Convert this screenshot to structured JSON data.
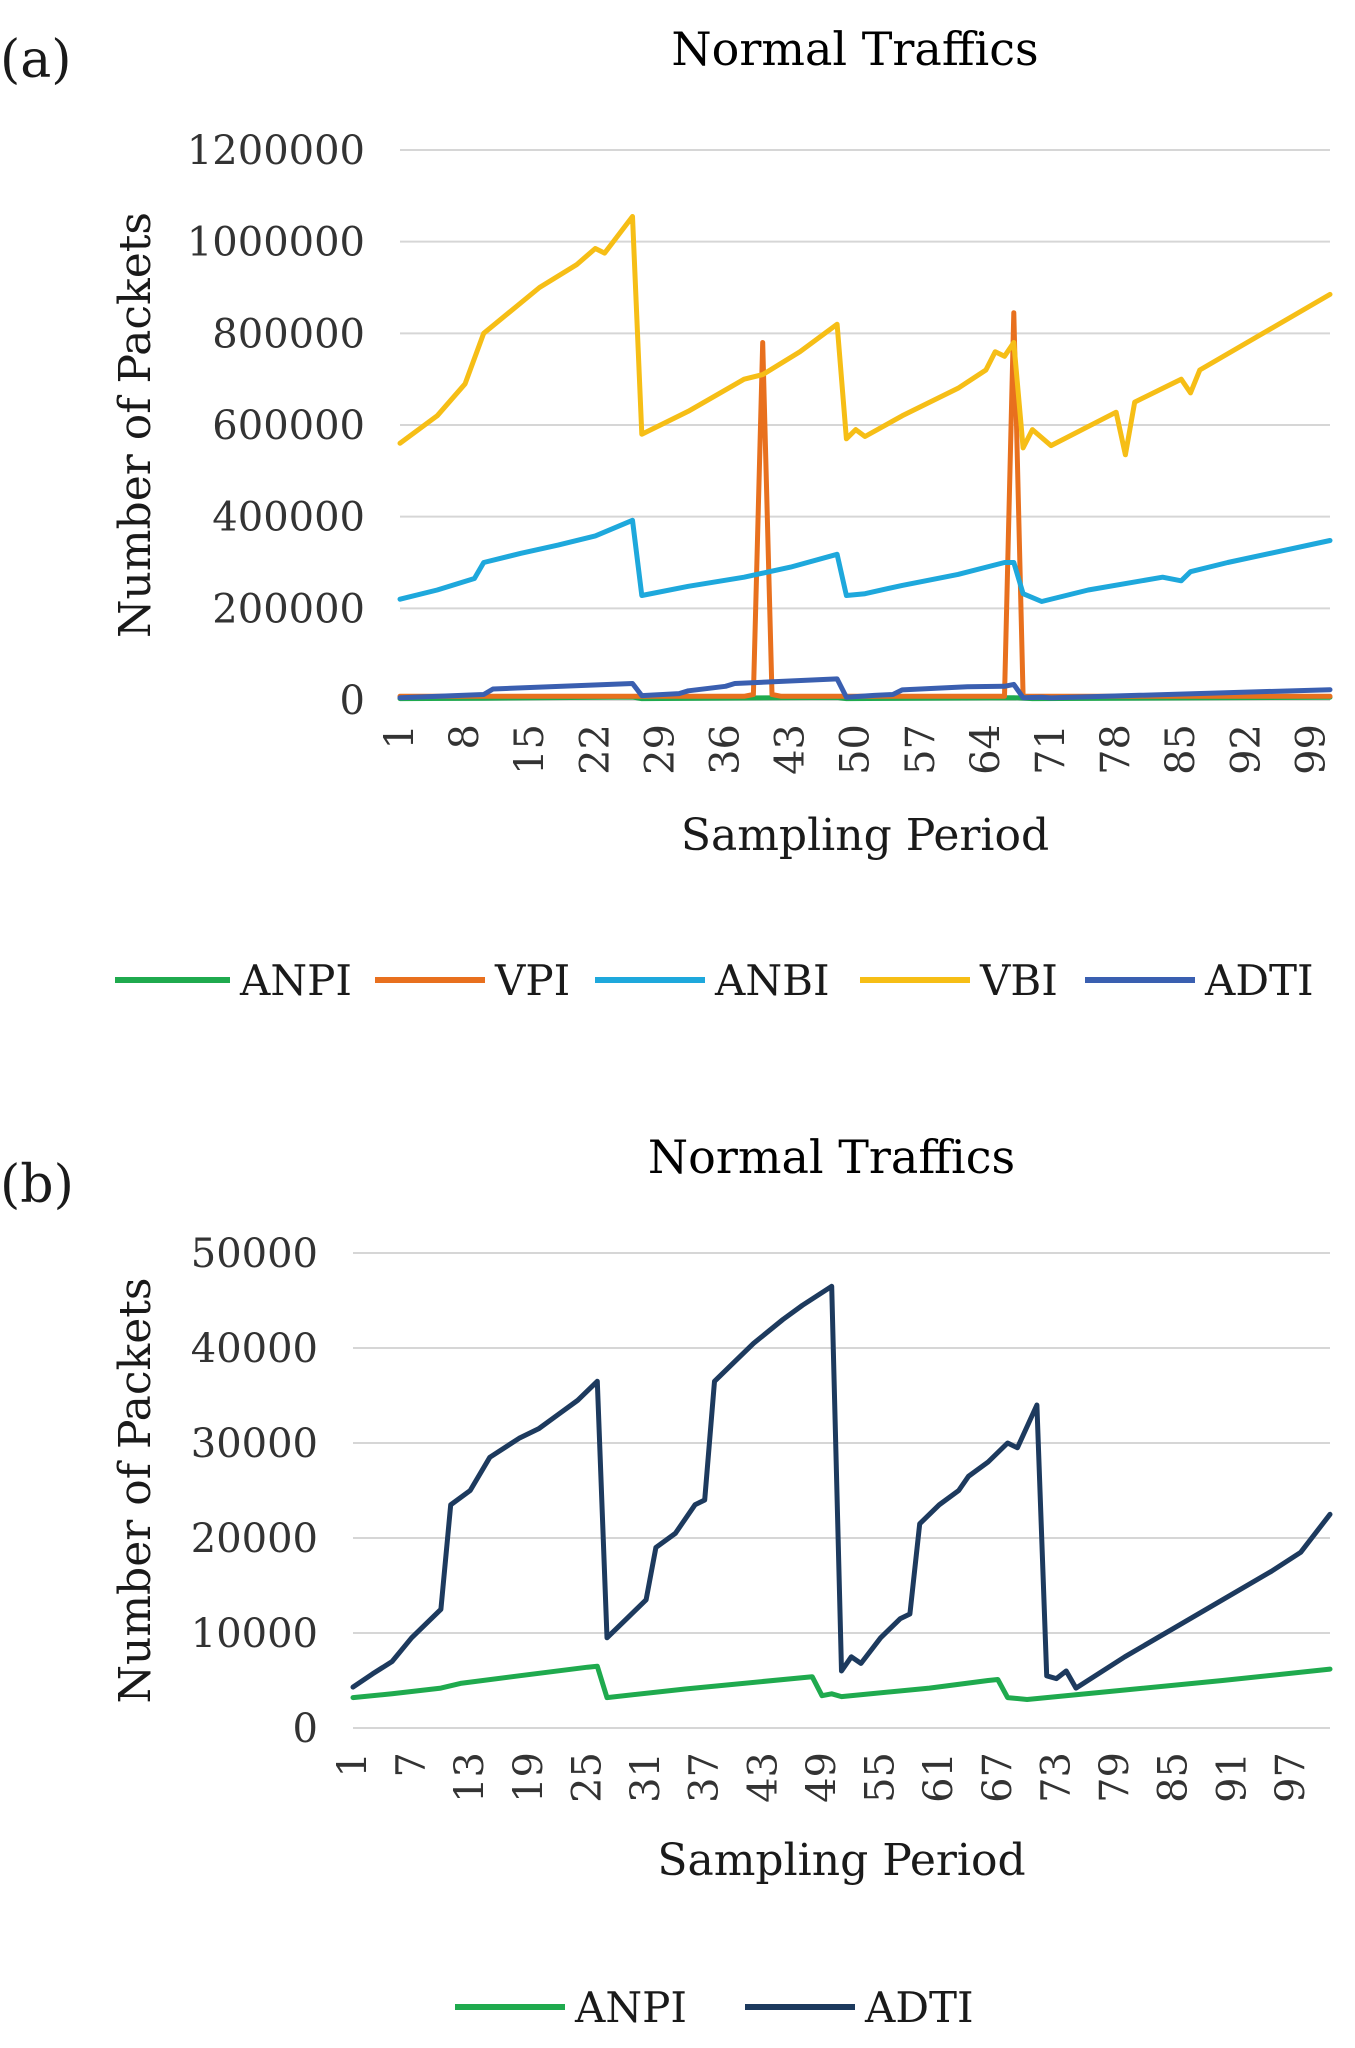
{
  "chart_data": [
    {
      "panel": "(a)",
      "type": "line",
      "title": "Normal Traffics",
      "xlabel": "Sampling Period",
      "ylabel": "Number of Packets",
      "ylim": [
        0,
        1200000
      ],
      "yticks": [
        "0",
        "200000",
        "400000",
        "600000",
        "800000",
        "1000000",
        "1200000"
      ],
      "xticks": [
        "1",
        "8",
        "15",
        "22",
        "29",
        "36",
        "43",
        "50",
        "57",
        "64",
        "71",
        "78",
        "85",
        "92",
        "99"
      ],
      "xrange": [
        1,
        101
      ],
      "grid": true,
      "legend_position": "bottom",
      "series": [
        {
          "name": "ANPI",
          "color": "#1faa4e",
          "points": [
            [
              1,
              3000
            ],
            [
              10,
              4000
            ],
            [
              26,
              6500
            ],
            [
              27,
              3000
            ],
            [
              48,
              5500
            ],
            [
              49,
              3000
            ],
            [
              67,
              5000
            ],
            [
              69,
              3000
            ],
            [
              101,
              6000
            ]
          ]
        },
        {
          "name": "VPI",
          "color": "#e8701e",
          "points": [
            [
              1,
              8000
            ],
            [
              38,
              8000
            ],
            [
              39,
              12000
            ],
            [
              40,
              780000
            ],
            [
              41,
              12000
            ],
            [
              42,
              8000
            ],
            [
              66,
              8000
            ],
            [
              67,
              845000
            ],
            [
              68,
              8000
            ],
            [
              101,
              8000
            ]
          ]
        },
        {
          "name": "ANBI",
          "color": "#1ea8dc",
          "points": [
            [
              1,
              220000
            ],
            [
              5,
              240000
            ],
            [
              9,
              265000
            ],
            [
              10,
              300000
            ],
            [
              14,
              320000
            ],
            [
              18,
              338000
            ],
            [
              22,
              358000
            ],
            [
              26,
              392000
            ],
            [
              27,
              228000
            ],
            [
              32,
              248000
            ],
            [
              38,
              268000
            ],
            [
              43,
              290000
            ],
            [
              48,
              318000
            ],
            [
              49,
              228000
            ],
            [
              51,
              232000
            ],
            [
              55,
              250000
            ],
            [
              61,
              274000
            ],
            [
              66,
              300000
            ],
            [
              67,
              300000
            ],
            [
              68,
              232000
            ],
            [
              70,
              215000
            ],
            [
              75,
              240000
            ],
            [
              83,
              268000
            ],
            [
              85,
              260000
            ],
            [
              86,
              280000
            ],
            [
              90,
              300000
            ],
            [
              101,
              348000
            ]
          ]
        },
        {
          "name": "VBI",
          "color": "#f6be16",
          "points": [
            [
              1,
              560000
            ],
            [
              5,
              620000
            ],
            [
              8,
              690000
            ],
            [
              10,
              800000
            ],
            [
              13,
              850000
            ],
            [
              16,
              900000
            ],
            [
              20,
              950000
            ],
            [
              22,
              985000
            ],
            [
              23,
              975000
            ],
            [
              26,
              1055000
            ],
            [
              27,
              580000
            ],
            [
              32,
              630000
            ],
            [
              38,
              700000
            ],
            [
              40,
              710000
            ],
            [
              44,
              760000
            ],
            [
              48,
              820000
            ],
            [
              49,
              570000
            ],
            [
              50,
              590000
            ],
            [
              51,
              575000
            ],
            [
              55,
              620000
            ],
            [
              61,
              680000
            ],
            [
              64,
              720000
            ],
            [
              65,
              760000
            ],
            [
              66,
              750000
            ],
            [
              67,
              780000
            ],
            [
              68,
              550000
            ],
            [
              69,
              590000
            ],
            [
              71,
              555000
            ],
            [
              78,
              628000
            ],
            [
              79,
              535000
            ],
            [
              80,
              650000
            ],
            [
              85,
              700000
            ],
            [
              86,
              670000
            ],
            [
              87,
              720000
            ],
            [
              101,
              885000
            ]
          ]
        },
        {
          "name": "ADTI",
          "color": "#3a5fb0",
          "points": [
            [
              1,
              5000
            ],
            [
              10,
              12000
            ],
            [
              11,
              24000
            ],
            [
              26,
              36000
            ],
            [
              27,
              9500
            ],
            [
              31,
              14000
            ],
            [
              32,
              20000
            ],
            [
              36,
              30000
            ],
            [
              37,
              36000
            ],
            [
              48,
              46000
            ],
            [
              49,
              6000
            ],
            [
              52,
              10000
            ],
            [
              54,
              12000
            ],
            [
              55,
              22000
            ],
            [
              62,
              29000
            ],
            [
              66,
              30000
            ],
            [
              67,
              34000
            ],
            [
              68,
              5000
            ],
            [
              70,
              6000
            ],
            [
              71,
              4500
            ],
            [
              101,
              22500
            ]
          ]
        }
      ]
    },
    {
      "panel": "(b)",
      "type": "line",
      "title": "Normal Traffics",
      "xlabel": "Sampling Period",
      "ylabel": "Number of Packets",
      "ylim": [
        0,
        50000
      ],
      "yticks": [
        "0",
        "10000",
        "20000",
        "30000",
        "40000",
        "50000"
      ],
      "xticks": [
        "1",
        "7",
        "13",
        "19",
        "25",
        "31",
        "37",
        "43",
        "49",
        "55",
        "61",
        "67",
        "73",
        "79",
        "85",
        "91",
        "97"
      ],
      "xrange": [
        1,
        101
      ],
      "grid": true,
      "legend_position": "bottom",
      "series": [
        {
          "name": "ANPI",
          "color": "#1faa4e",
          "points": [
            [
              1,
              3200
            ],
            [
              5,
              3600
            ],
            [
              10,
              4200
            ],
            [
              12,
              4700
            ],
            [
              18,
              5500
            ],
            [
              25,
              6400
            ],
            [
              26,
              6500
            ],
            [
              27,
              3200
            ],
            [
              35,
              4100
            ],
            [
              48,
              5400
            ],
            [
              49,
              3400
            ],
            [
              50,
              3600
            ],
            [
              51,
              3300
            ],
            [
              60,
              4200
            ],
            [
              66,
              5000
            ],
            [
              67,
              5100
            ],
            [
              68,
              3200
            ],
            [
              70,
              3000
            ],
            [
              80,
              4000
            ],
            [
              90,
              5000
            ],
            [
              101,
              6200
            ]
          ]
        },
        {
          "name": "ADTI",
          "color": "#1d3a5e",
          "points": [
            [
              1,
              4300
            ],
            [
              3,
              5700
            ],
            [
              5,
              7000
            ],
            [
              7,
              9500
            ],
            [
              10,
              12500
            ],
            [
              11,
              23500
            ],
            [
              13,
              25000
            ],
            [
              15,
              28500
            ],
            [
              18,
              30500
            ],
            [
              20,
              31500
            ],
            [
              22,
              33000
            ],
            [
              24,
              34500
            ],
            [
              26,
              36500
            ],
            [
              27,
              9500
            ],
            [
              29,
              11500
            ],
            [
              31,
              13500
            ],
            [
              32,
              19000
            ],
            [
              34,
              20500
            ],
            [
              36,
              23500
            ],
            [
              37,
              24000
            ],
            [
              38,
              36500
            ],
            [
              40,
              38500
            ],
            [
              42,
              40500
            ],
            [
              45,
              43000
            ],
            [
              47,
              44500
            ],
            [
              50,
              46500
            ],
            [
              51,
              6000
            ],
            [
              52,
              7500
            ],
            [
              53,
              6800
            ],
            [
              55,
              9500
            ],
            [
              57,
              11500
            ],
            [
              58,
              12000
            ],
            [
              59,
              21500
            ],
            [
              61,
              23500
            ],
            [
              63,
              25000
            ],
            [
              64,
              26500
            ],
            [
              66,
              28000
            ],
            [
              68,
              30000
            ],
            [
              69,
              29500
            ],
            [
              71,
              34000
            ],
            [
              72,
              5500
            ],
            [
              73,
              5200
            ],
            [
              74,
              6000
            ],
            [
              75,
              4200
            ],
            [
              80,
              7500
            ],
            [
              85,
              10500
            ],
            [
              90,
              13500
            ],
            [
              95,
              16500
            ],
            [
              98,
              18500
            ],
            [
              101,
              22500
            ]
          ]
        }
      ]
    }
  ]
}
